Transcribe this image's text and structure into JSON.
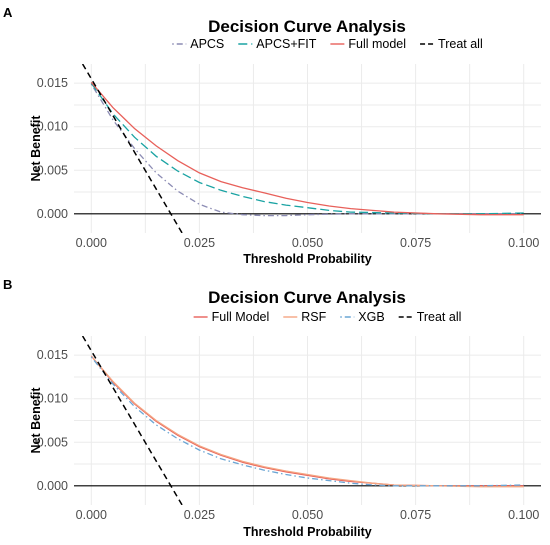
{
  "chart_data": [
    {
      "panel": "A",
      "type": "line",
      "title": "Decision Curve Analysis",
      "xlabel": "Threshold Probability",
      "ylabel": "Net Benefit",
      "xlim": [
        -0.004,
        0.104
      ],
      "ylim": [
        -0.0022,
        0.0172
      ],
      "x_ticks": [
        "0.000",
        "0.025",
        "0.050",
        "0.075",
        "0.100"
      ],
      "y_ticks": [
        "0.000",
        "0.005",
        "0.010",
        "0.015"
      ],
      "legend_position": "top",
      "grid": true,
      "series": [
        {
          "name": "APCS",
          "color": "#8c8cb4",
          "dash": "dotdash",
          "x": [
            0,
            0.005,
            0.01,
            0.015,
            0.02,
            0.025,
            0.03,
            0.035,
            0.04,
            0.045,
            0.05,
            0.06,
            0.07,
            0.08,
            0.09,
            0.1
          ],
          "y": [
            0.0149,
            0.0108,
            0.0075,
            0.0047,
            0.0026,
            0.0011,
            0.0002,
            -0.0001,
            -0.0002,
            -0.0002,
            -0.0001,
            0,
            0,
            0,
            0,
            0
          ]
        },
        {
          "name": "APCS+FIT",
          "color": "#1aa3a3",
          "dash": "longdash",
          "x": [
            0,
            0.005,
            0.01,
            0.015,
            0.02,
            0.025,
            0.03,
            0.035,
            0.04,
            0.045,
            0.05,
            0.055,
            0.06,
            0.07,
            0.08,
            0.09,
            0.1
          ],
          "y": [
            0.015,
            0.0115,
            0.0088,
            0.0066,
            0.0049,
            0.0036,
            0.0027,
            0.002,
            0.0014,
            0.001,
            0.0007,
            0.0004,
            0.0002,
            0.0001,
            0,
            0,
            0.0001
          ]
        },
        {
          "name": "Full model",
          "color": "#e8605a",
          "dash": "solid",
          "x": [
            0,
            0.005,
            0.01,
            0.015,
            0.02,
            0.025,
            0.03,
            0.035,
            0.04,
            0.045,
            0.05,
            0.055,
            0.06,
            0.065,
            0.07,
            0.08,
            0.09,
            0.1
          ],
          "y": [
            0.0151,
            0.0122,
            0.0098,
            0.0078,
            0.0061,
            0.0047,
            0.0037,
            0.003,
            0.0024,
            0.0018,
            0.0013,
            0.0009,
            0.0006,
            0.0004,
            0.0002,
            0,
            -0.0001,
            -0.0001
          ]
        },
        {
          "name": "Treat all",
          "color": "#000000",
          "dash": "dashed",
          "x": [
            -0.002,
            0.021
          ],
          "y": [
            0.0172,
            -0.0022
          ]
        }
      ]
    },
    {
      "panel": "B",
      "type": "line",
      "title": "Decision Curve Analysis",
      "xlabel": "Threshold Probability",
      "ylabel": "Net Benefit",
      "xlim": [
        -0.004,
        0.104
      ],
      "ylim": [
        -0.0022,
        0.0172
      ],
      "x_ticks": [
        "0.000",
        "0.025",
        "0.050",
        "0.075",
        "0.100"
      ],
      "y_ticks": [
        "0.000",
        "0.005",
        "0.010",
        "0.015"
      ],
      "legend_position": "top",
      "grid": true,
      "series": [
        {
          "name": "Full Model",
          "color": "#e8605a",
          "dash": "solid",
          "x": [
            0,
            0.005,
            0.01,
            0.015,
            0.02,
            0.025,
            0.03,
            0.035,
            0.04,
            0.045,
            0.05,
            0.055,
            0.06,
            0.065,
            0.07,
            0.08,
            0.09,
            0.1
          ],
          "y": [
            0.0149,
            0.0119,
            0.0094,
            0.0074,
            0.0058,
            0.0045,
            0.0035,
            0.0027,
            0.0021,
            0.0016,
            0.0012,
            0.0008,
            0.0005,
            0.0003,
            0.0001,
            0,
            0,
            0
          ]
        },
        {
          "name": "RSF",
          "color": "#f4a582",
          "dash": "solid",
          "x": [
            0,
            0.005,
            0.01,
            0.015,
            0.02,
            0.025,
            0.03,
            0.035,
            0.04,
            0.045,
            0.05,
            0.055,
            0.06,
            0.065,
            0.07,
            0.08,
            0.09,
            0.1
          ],
          "y": [
            0.0149,
            0.012,
            0.0095,
            0.0075,
            0.0059,
            0.0046,
            0.0036,
            0.0028,
            0.0022,
            0.0017,
            0.0013,
            0.0009,
            0.0006,
            0.0003,
            0.0001,
            0,
            -0.0001,
            -0.0001
          ]
        },
        {
          "name": "XGB",
          "color": "#6aa5d4",
          "dash": "dotdash",
          "x": [
            0,
            0.005,
            0.01,
            0.015,
            0.02,
            0.025,
            0.03,
            0.035,
            0.04,
            0.045,
            0.05,
            0.055,
            0.06,
            0.065,
            0.07,
            0.08,
            0.09,
            0.1
          ],
          "y": [
            0.0148,
            0.0117,
            0.0091,
            0.007,
            0.0054,
            0.0041,
            0.0031,
            0.0024,
            0.0018,
            0.0013,
            0.0009,
            0.0006,
            0.0003,
            0.0001,
            0,
            0,
            0,
            0.0001
          ]
        },
        {
          "name": "Treat all",
          "color": "#000000",
          "dash": "dashed",
          "x": [
            -0.002,
            0.021
          ],
          "y": [
            0.0172,
            -0.0022
          ]
        }
      ]
    }
  ]
}
